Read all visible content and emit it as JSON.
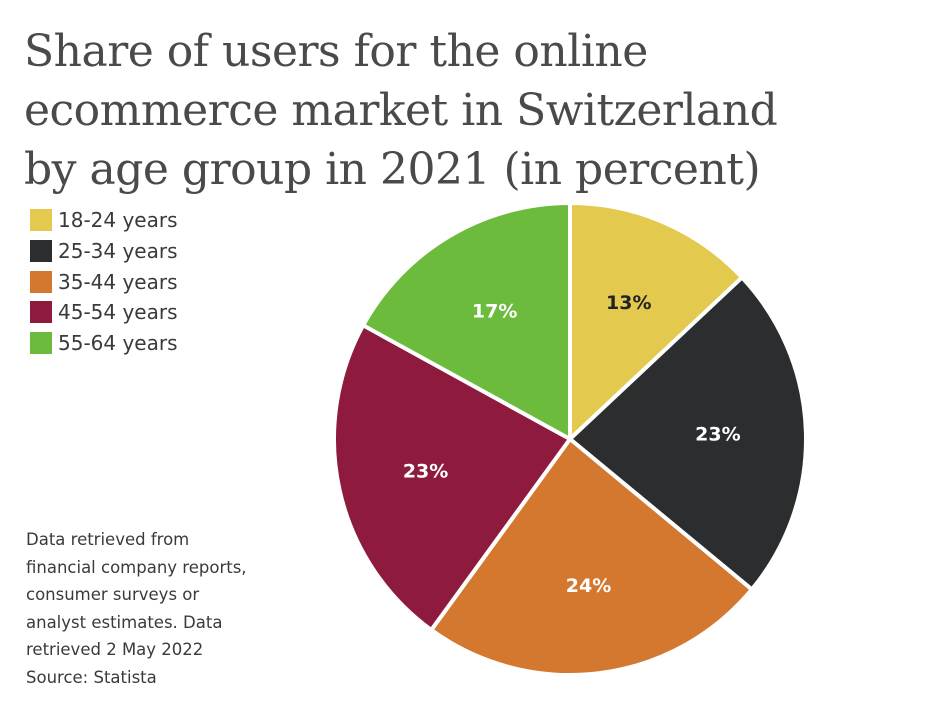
{
  "chart_data": {
    "type": "pie",
    "title_lines": [
      "Share of users for the online",
      "ecommerce market in Switzerland",
      "by age group in 2021 (in percent)"
    ],
    "categories": [
      "18-24 years",
      "25-34 years",
      "35-44 years",
      "45-54 years",
      "55-64 years"
    ],
    "values": [
      13,
      23,
      24,
      23,
      17
    ],
    "value_labels": [
      "13%",
      "23%",
      "24%",
      "23%",
      "17%"
    ],
    "colors": [
      "#e3c94e",
      "#2b2d2f",
      "#d4782f",
      "#8e1a3d",
      "#6cbb3c"
    ],
    "label_colors": [
      "#222222",
      "#ffffff",
      "#ffffff",
      "#ffffff",
      "#ffffff"
    ],
    "legend_position": "top-left",
    "note_lines": [
      "Data retrieved from",
      "financial company reports,",
      "consumer surveys or",
      "analyst estimates. Data",
      "retrieved 2 May 2022",
      "Source: Statista"
    ]
  }
}
